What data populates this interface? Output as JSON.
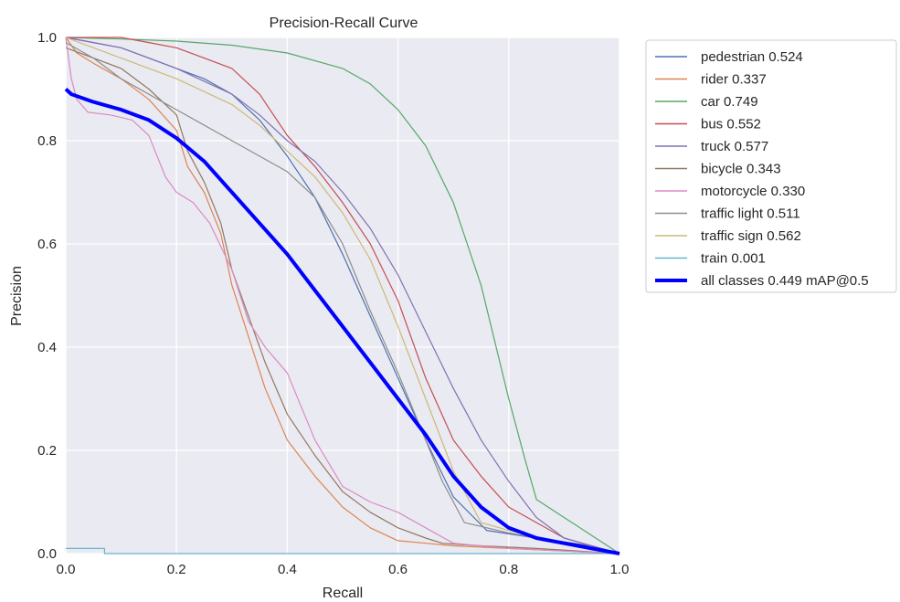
{
  "chart_data": {
    "type": "line",
    "title": "Precision-Recall Curve",
    "xlabel": "Recall",
    "ylabel": "Precision",
    "xlim": [
      0,
      1
    ],
    "ylim": [
      0,
      1
    ],
    "xticks": [
      "0.0",
      "0.2",
      "0.4",
      "0.6",
      "0.8",
      "1.0"
    ],
    "yticks": [
      "0.0",
      "0.2",
      "0.4",
      "0.6",
      "0.8",
      "1.0"
    ],
    "grid": true,
    "legend": "outside-top-right",
    "background": "#eaeaf2",
    "series": [
      {
        "name": "pedestrian 0.524",
        "color": "#4c72b0",
        "x": [
          0,
          0.05,
          0.1,
          0.15,
          0.2,
          0.25,
          0.3,
          0.35,
          0.4,
          0.45,
          0.5,
          0.55,
          0.6,
          0.65,
          0.7,
          0.76,
          0.85,
          0.95,
          1.0
        ],
        "y": [
          1.0,
          0.99,
          0.98,
          0.96,
          0.94,
          0.92,
          0.89,
          0.84,
          0.77,
          0.69,
          0.58,
          0.46,
          0.34,
          0.22,
          0.11,
          0.045,
          0.03,
          0.015,
          0
        ]
      },
      {
        "name": "rider 0.337",
        "color": "#dd8452",
        "x": [
          0,
          0.02,
          0.05,
          0.1,
          0.15,
          0.2,
          0.22,
          0.25,
          0.28,
          0.3,
          0.33,
          0.36,
          0.4,
          0.45,
          0.5,
          0.55,
          0.6,
          0.65,
          0.7,
          0.8,
          0.9,
          1.0
        ],
        "y": [
          1.0,
          0.97,
          0.95,
          0.92,
          0.88,
          0.82,
          0.75,
          0.7,
          0.62,
          0.52,
          0.42,
          0.32,
          0.22,
          0.15,
          0.09,
          0.05,
          0.025,
          0.02,
          0.015,
          0.01,
          0.005,
          0
        ]
      },
      {
        "name": "car 0.749",
        "color": "#55a868",
        "x": [
          0,
          0.1,
          0.2,
          0.3,
          0.4,
          0.5,
          0.55,
          0.6,
          0.65,
          0.7,
          0.75,
          0.8,
          0.83,
          0.85,
          0.9,
          0.95,
          1.0
        ],
        "y": [
          1.0,
          0.997,
          0.993,
          0.985,
          0.97,
          0.94,
          0.91,
          0.86,
          0.79,
          0.68,
          0.52,
          0.3,
          0.18,
          0.105,
          0.07,
          0.035,
          0
        ]
      },
      {
        "name": "bus 0.552",
        "color": "#c44e52",
        "x": [
          0,
          0.1,
          0.15,
          0.2,
          0.25,
          0.3,
          0.35,
          0.4,
          0.45,
          0.5,
          0.55,
          0.6,
          0.65,
          0.7,
          0.75,
          0.8,
          0.9,
          1.0
        ],
        "y": [
          1.0,
          1.0,
          0.99,
          0.98,
          0.96,
          0.94,
          0.89,
          0.81,
          0.75,
          0.68,
          0.6,
          0.49,
          0.34,
          0.22,
          0.15,
          0.09,
          0.03,
          0
        ]
      },
      {
        "name": "truck 0.577",
        "color": "#8172b3",
        "x": [
          0,
          0.05,
          0.1,
          0.2,
          0.3,
          0.35,
          0.4,
          0.45,
          0.5,
          0.55,
          0.6,
          0.65,
          0.7,
          0.75,
          0.8,
          0.85,
          0.9,
          1.0
        ],
        "y": [
          1.0,
          0.99,
          0.98,
          0.94,
          0.89,
          0.85,
          0.8,
          0.76,
          0.7,
          0.63,
          0.54,
          0.43,
          0.32,
          0.22,
          0.14,
          0.07,
          0.03,
          0
        ]
      },
      {
        "name": "bicycle 0.343",
        "color": "#937860",
        "x": [
          0,
          0.05,
          0.1,
          0.15,
          0.2,
          0.22,
          0.25,
          0.28,
          0.3,
          0.33,
          0.36,
          0.4,
          0.45,
          0.5,
          0.55,
          0.6,
          0.65,
          0.68,
          0.75,
          0.85,
          1.0
        ],
        "y": [
          0.98,
          0.96,
          0.94,
          0.9,
          0.85,
          0.78,
          0.72,
          0.64,
          0.55,
          0.46,
          0.37,
          0.27,
          0.19,
          0.12,
          0.08,
          0.05,
          0.03,
          0.02,
          0.015,
          0.01,
          0
        ]
      },
      {
        "name": "motorcycle 0.330",
        "color": "#da8bc3",
        "x": [
          0,
          0.01,
          0.02,
          0.04,
          0.08,
          0.12,
          0.15,
          0.18,
          0.2,
          0.23,
          0.26,
          0.3,
          0.33,
          0.36,
          0.4,
          0.45,
          0.5,
          0.55,
          0.6,
          0.65,
          0.7,
          0.8,
          0.9,
          1.0
        ],
        "y": [
          1.0,
          0.92,
          0.88,
          0.855,
          0.85,
          0.84,
          0.81,
          0.73,
          0.7,
          0.68,
          0.64,
          0.55,
          0.45,
          0.4,
          0.35,
          0.22,
          0.13,
          0.1,
          0.08,
          0.05,
          0.02,
          0.01,
          0.005,
          0
        ]
      },
      {
        "name": "traffic light 0.511",
        "color": "#8c8c8c",
        "x": [
          0,
          0.05,
          0.1,
          0.2,
          0.3,
          0.4,
          0.45,
          0.5,
          0.55,
          0.6,
          0.65,
          0.68,
          0.72,
          0.8,
          0.9,
          1.0
        ],
        "y": [
          0.99,
          0.96,
          0.92,
          0.86,
          0.8,
          0.74,
          0.69,
          0.6,
          0.47,
          0.35,
          0.22,
          0.14,
          0.06,
          0.04,
          0.02,
          0
        ]
      },
      {
        "name": "traffic sign 0.562",
        "color": "#ccb974",
        "x": [
          0,
          0.05,
          0.1,
          0.2,
          0.3,
          0.35,
          0.4,
          0.45,
          0.5,
          0.55,
          0.6,
          0.65,
          0.7,
          0.75,
          0.8,
          0.9,
          1.0
        ],
        "y": [
          1.0,
          0.98,
          0.96,
          0.92,
          0.87,
          0.83,
          0.78,
          0.73,
          0.66,
          0.57,
          0.44,
          0.3,
          0.16,
          0.06,
          0.045,
          0.02,
          0
        ]
      },
      {
        "name": "train 0.001",
        "color": "#64b5cd",
        "x": [
          0,
          0.07,
          0.07,
          1.0
        ],
        "y": [
          0.01,
          0.01,
          0.0,
          0.0
        ]
      },
      {
        "name": "all classes 0.449 mAP@0.5",
        "color": "#0000ff",
        "bold": true,
        "x": [
          0,
          0.01,
          0.05,
          0.1,
          0.15,
          0.2,
          0.25,
          0.3,
          0.35,
          0.4,
          0.45,
          0.5,
          0.55,
          0.6,
          0.65,
          0.7,
          0.75,
          0.8,
          0.85,
          0.9,
          0.95,
          1.0
        ],
        "y": [
          0.9,
          0.89,
          0.875,
          0.86,
          0.84,
          0.805,
          0.76,
          0.7,
          0.64,
          0.58,
          0.51,
          0.44,
          0.37,
          0.3,
          0.23,
          0.15,
          0.09,
          0.05,
          0.03,
          0.02,
          0.01,
          0
        ]
      }
    ]
  }
}
